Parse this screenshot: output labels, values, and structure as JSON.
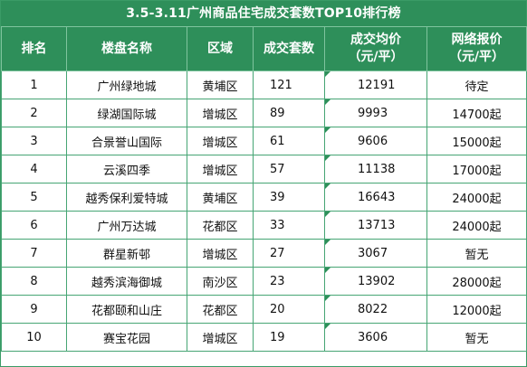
{
  "title": "3.5-3.11广州商品住宅成交套数TOP10排行榜",
  "headers": {
    "rank": "排名",
    "name": "楼盘名称",
    "district": "区域",
    "count": "成交套数",
    "avg_price_l1": "成交均价",
    "avg_price_l2": "（元/平）",
    "online_price_l1": "网络报价",
    "online_price_l2": "（元/平）"
  },
  "rows": [
    {
      "rank": "1",
      "name": "广州绿地城",
      "district": "黄埔区",
      "count": "121",
      "avg_price": "12191",
      "online_price": "待定"
    },
    {
      "rank": "2",
      "name": "绿湖国际城",
      "district": "增城区",
      "count": "89",
      "avg_price": "9993",
      "online_price": "14700起"
    },
    {
      "rank": "3",
      "name": "合景誉山国际",
      "district": "增城区",
      "count": "61",
      "avg_price": "9606",
      "online_price": "15000起"
    },
    {
      "rank": "4",
      "name": "云溪四季",
      "district": "增城区",
      "count": "57",
      "avg_price": "11138",
      "online_price": "17000起"
    },
    {
      "rank": "5",
      "name": "越秀保利爱特城",
      "district": "黄埔区",
      "count": "39",
      "avg_price": "16643",
      "online_price": "24000起"
    },
    {
      "rank": "6",
      "name": "广州万达城",
      "district": "花都区",
      "count": "33",
      "avg_price": "13713",
      "online_price": "24000起"
    },
    {
      "rank": "7",
      "name": "群星新邨",
      "district": "增城区",
      "count": "27",
      "avg_price": "3067",
      "online_price": "暂无"
    },
    {
      "rank": "8",
      "name": "越秀滨海御城",
      "district": "南沙区",
      "count": "23",
      "avg_price": "13902",
      "online_price": "28000起"
    },
    {
      "rank": "9",
      "name": "花都颐和山庄",
      "district": "花都区",
      "count": "20",
      "avg_price": "8022",
      "online_price": "12000起"
    },
    {
      "rank": "10",
      "name": "赛宝花园",
      "district": "增城区",
      "count": "19",
      "avg_price": "3606",
      "online_price": "暂无"
    }
  ]
}
